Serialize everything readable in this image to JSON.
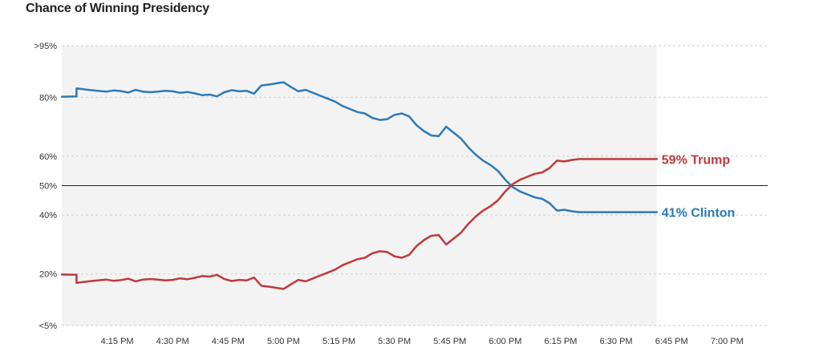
{
  "chart_data": {
    "type": "line",
    "title": "Chance of Winning Presidency",
    "xlabel": "",
    "ylabel": "",
    "y_ticks": [
      {
        "value": 2.5,
        "label": "<5%"
      },
      {
        "value": 20,
        "label": "20%"
      },
      {
        "value": 40,
        "label": "40%"
      },
      {
        "value": 50,
        "label": "50%"
      },
      {
        "value": 60,
        "label": "60%"
      },
      {
        "value": 80,
        "label": "80%"
      },
      {
        "value": 97.5,
        "label": ">95%"
      }
    ],
    "ylim": [
      2.5,
      97.5
    ],
    "x_range_minutes": [
      "4:00 PM",
      "7:15 PM"
    ],
    "x_ticks": [
      {
        "minute": 15,
        "label": "4:15 PM"
      },
      {
        "minute": 30,
        "label": "4:30 PM"
      },
      {
        "minute": 45,
        "label": "4:45 PM"
      },
      {
        "minute": 60,
        "label": "5:00 PM"
      },
      {
        "minute": 75,
        "label": "5:15 PM"
      },
      {
        "minute": 90,
        "label": "5:30 PM"
      },
      {
        "minute": 105,
        "label": "5:45 PM"
      },
      {
        "minute": 120,
        "label": "6:00 PM"
      },
      {
        "minute": 135,
        "label": "6:15 PM"
      },
      {
        "minute": 150,
        "label": "6:30 PM"
      },
      {
        "minute": 165,
        "label": "6:45 PM"
      },
      {
        "minute": 180,
        "label": "7:00 PM"
      }
    ],
    "x_domain_minutes_after_4pm": [
      0,
      191
    ],
    "shaded_region_end_minute": 161,
    "reference_line_value": 50,
    "grid": true,
    "series": [
      {
        "name": "Clinton",
        "color": "#2b7bba",
        "end_label": "41% Clinton",
        "x": [
          0,
          4,
          4,
          8,
          12,
          14,
          16,
          18,
          20,
          22,
          24,
          26,
          28,
          30,
          32,
          34,
          36,
          38,
          40,
          42,
          44,
          46,
          48,
          50,
          52,
          54,
          56,
          58,
          60,
          62,
          64,
          66,
          68,
          70,
          72,
          74,
          76,
          78,
          80,
          82,
          84,
          86,
          88,
          90,
          92,
          94,
          96,
          98,
          100,
          102,
          104,
          106,
          108,
          110,
          112,
          114,
          116,
          118,
          120,
          122,
          124,
          126,
          128,
          130,
          132,
          134,
          136,
          138,
          140,
          142,
          144,
          146,
          148,
          150,
          152,
          154,
          156,
          158,
          160,
          161
        ],
        "values": [
          80.2,
          80.3,
          83.0,
          82.4,
          81.9,
          82.3,
          82.1,
          81.6,
          82.5,
          81.9,
          81.7,
          81.9,
          82.2,
          82.0,
          81.5,
          81.8,
          81.3,
          80.7,
          80.9,
          80.3,
          81.7,
          82.4,
          82.0,
          82.2,
          81.2,
          84.0,
          84.3,
          84.7,
          85.1,
          83.5,
          82.0,
          82.5,
          81.5,
          80.5,
          79.5,
          78.5,
          77.0,
          76.0,
          75.0,
          74.5,
          73.0,
          72.3,
          72.5,
          74.0,
          74.5,
          73.5,
          70.5,
          68.5,
          67.0,
          66.8,
          70.0,
          68.0,
          66.0,
          63.0,
          60.5,
          58.5,
          57.0,
          55.0,
          52.0,
          49.5,
          48.0,
          47.0,
          46.0,
          45.5,
          44.0,
          41.5,
          41.8,
          41.3,
          41.0,
          41.0,
          41.0,
          41.0,
          41.0,
          41.0,
          41.0,
          41.0,
          41.0,
          41.0,
          41.0,
          41.0
        ]
      },
      {
        "name": "Trump",
        "color": "#c0393b",
        "end_label": "59% Trump",
        "x": [
          0,
          4,
          4,
          8,
          12,
          14,
          16,
          18,
          20,
          22,
          24,
          26,
          28,
          30,
          32,
          34,
          36,
          38,
          40,
          42,
          44,
          46,
          48,
          50,
          52,
          54,
          56,
          58,
          60,
          62,
          64,
          66,
          68,
          70,
          72,
          74,
          76,
          78,
          80,
          82,
          84,
          86,
          88,
          90,
          92,
          94,
          96,
          98,
          100,
          102,
          104,
          106,
          108,
          110,
          112,
          114,
          116,
          118,
          120,
          122,
          124,
          126,
          128,
          130,
          132,
          134,
          136,
          138,
          140,
          142,
          144,
          146,
          148,
          150,
          152,
          154,
          156,
          158,
          160,
          161
        ],
        "values": [
          19.8,
          19.7,
          17.0,
          17.6,
          18.1,
          17.7,
          17.9,
          18.4,
          17.5,
          18.1,
          18.3,
          18.1,
          17.8,
          18.0,
          18.5,
          18.2,
          18.7,
          19.3,
          19.1,
          19.7,
          18.3,
          17.6,
          18.0,
          17.8,
          18.8,
          16.0,
          15.7,
          15.3,
          14.9,
          16.5,
          18.0,
          17.5,
          18.5,
          19.5,
          20.5,
          21.5,
          23.0,
          24.0,
          25.0,
          25.5,
          27.0,
          27.7,
          27.5,
          26.0,
          25.5,
          26.5,
          29.5,
          31.5,
          33.0,
          33.2,
          30.0,
          32.0,
          34.0,
          37.0,
          39.5,
          41.5,
          43.0,
          45.0,
          48.0,
          50.5,
          52.0,
          53.0,
          54.0,
          54.5,
          56.0,
          58.5,
          58.2,
          58.7,
          59.0,
          59.0,
          59.0,
          59.0,
          59.0,
          59.0,
          59.0,
          59.0,
          59.0,
          59.0,
          59.0,
          59.0
        ]
      }
    ]
  }
}
